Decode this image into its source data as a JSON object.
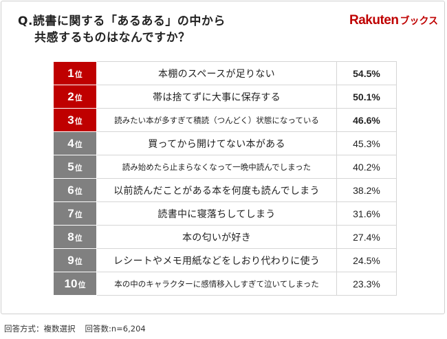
{
  "header": {
    "question_line1": "Q.読書に関する「あるある」の中から",
    "question_line2": "共感するものはなんですか？",
    "brand_main": "Rakuten",
    "brand_sub": "ブックス"
  },
  "colors": {
    "top3": "#bf0000",
    "others": "#808080",
    "brand": "#bf0000"
  },
  "rank_suffix": "位",
  "chart_data": {
    "type": "table",
    "rows": [
      {
        "rank": "1",
        "label": "本棚のスペースが足りない",
        "value": "54.5%",
        "small": false
      },
      {
        "rank": "2",
        "label": "帯は捨てずに大事に保存する",
        "value": "50.1%",
        "small": false
      },
      {
        "rank": "3",
        "label": "読みたい本が多すぎて積読（つんどく）状態になっている",
        "value": "46.6%",
        "small": true
      },
      {
        "rank": "4",
        "label": "買ってから開けてない本がある",
        "value": "45.3%",
        "small": false
      },
      {
        "rank": "5",
        "label": "読み始めたら止まらなくなって一晩中読んでしまった",
        "value": "40.2%",
        "small": true
      },
      {
        "rank": "6",
        "label": "以前読んだことがある本を何度も読んでしまう",
        "value": "38.2%",
        "small": false
      },
      {
        "rank": "7",
        "label": "読書中に寝落ちしてしまう",
        "value": "31.6%",
        "small": false
      },
      {
        "rank": "8",
        "label": "本の匂いが好き",
        "value": "27.4%",
        "small": false
      },
      {
        "rank": "9",
        "label": "レシートやメモ用紙などをしおり代わりに使う",
        "value": "24.5%",
        "small": false
      },
      {
        "rank": "10",
        "label": "本の中のキャラクターに感情移入しすぎて泣いてしまった",
        "value": "23.3%",
        "small": true
      }
    ],
    "values_numeric": [
      54.5,
      50.1,
      46.6,
      45.3,
      40.2,
      38.2,
      31.6,
      27.4,
      24.5,
      23.3
    ],
    "highlight_top": 3
  },
  "footer": {
    "method": "回答方式：複数選択",
    "count": "回答数:n=6,204"
  }
}
